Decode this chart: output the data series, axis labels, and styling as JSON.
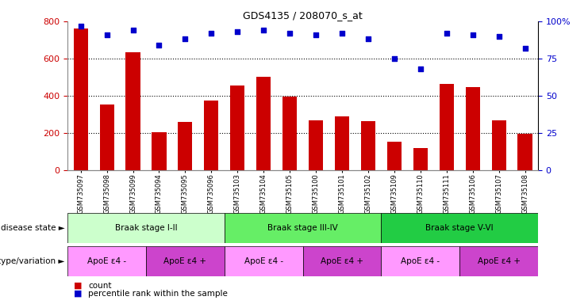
{
  "title": "GDS4135 / 208070_s_at",
  "samples": [
    "GSM735097",
    "GSM735098",
    "GSM735099",
    "GSM735094",
    "GSM735095",
    "GSM735096",
    "GSM735103",
    "GSM735104",
    "GSM735105",
    "GSM735100",
    "GSM735101",
    "GSM735102",
    "GSM735109",
    "GSM735110",
    "GSM735111",
    "GSM735106",
    "GSM735107",
    "GSM735108"
  ],
  "counts": [
    760,
    355,
    635,
    205,
    260,
    375,
    455,
    500,
    395,
    270,
    290,
    265,
    155,
    120,
    465,
    445,
    270,
    195
  ],
  "percentiles": [
    97,
    91,
    94,
    84,
    88,
    92,
    93,
    94,
    92,
    91,
    92,
    88,
    75,
    68,
    92,
    91,
    90,
    82
  ],
  "bar_color": "#cc0000",
  "dot_color": "#0000cc",
  "ylim_left": [
    0,
    800
  ],
  "ylim_right": [
    0,
    100
  ],
  "yticks_left": [
    0,
    200,
    400,
    600,
    800
  ],
  "yticks_right": [
    0,
    25,
    50,
    75,
    100
  ],
  "yticklabels_right": [
    "0",
    "25",
    "50",
    "75",
    "100%"
  ],
  "grid_values": [
    200,
    400,
    600
  ],
  "disease_groups": [
    {
      "label": "Braak stage I-II",
      "start": 0,
      "end": 6,
      "color": "#ccffcc"
    },
    {
      "label": "Braak stage III-IV",
      "start": 6,
      "end": 12,
      "color": "#66ee66"
    },
    {
      "label": "Braak stage V-VI",
      "start": 12,
      "end": 18,
      "color": "#22cc44"
    }
  ],
  "genotype_groups": [
    {
      "label": "ApoE ε4 -",
      "start": 0,
      "end": 3,
      "color": "#ff99ff"
    },
    {
      "label": "ApoE ε4 +",
      "start": 3,
      "end": 6,
      "color": "#cc44cc"
    },
    {
      "label": "ApoE ε4 -",
      "start": 6,
      "end": 9,
      "color": "#ff99ff"
    },
    {
      "label": "ApoE ε4 +",
      "start": 9,
      "end": 12,
      "color": "#cc44cc"
    },
    {
      "label": "ApoE ε4 -",
      "start": 12,
      "end": 15,
      "color": "#ff99ff"
    },
    {
      "label": "ApoE ε4 +",
      "start": 15,
      "end": 18,
      "color": "#cc44cc"
    }
  ],
  "legend_count_color": "#cc0000",
  "legend_dot_color": "#0000cc",
  "background_color": "#ffffff",
  "disease_state_label": "disease state",
  "genotype_label": "genotype/variation"
}
